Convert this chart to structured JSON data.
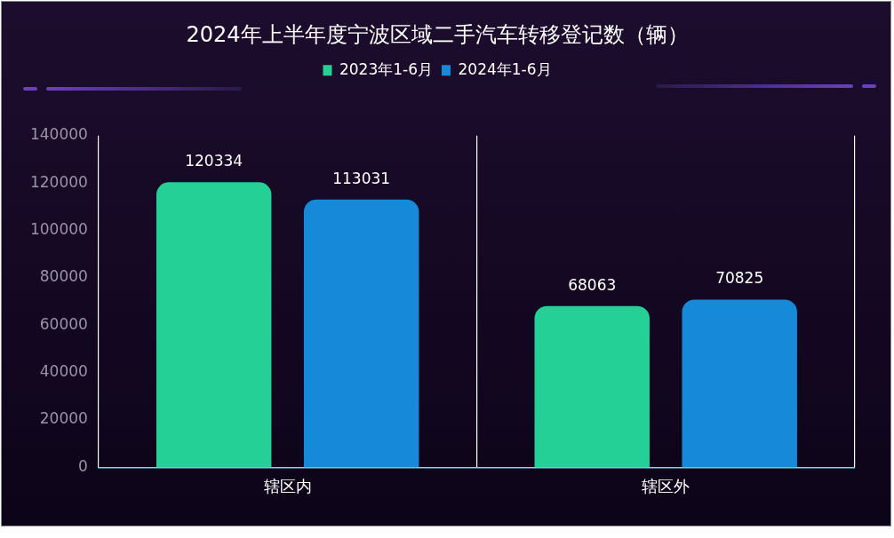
{
  "chart_data": {
    "type": "bar",
    "title": "2024年上半年度宁波区域二手汽车转移登记数（辆）",
    "categories": [
      "辖区内",
      "辖区外"
    ],
    "series": [
      {
        "name": "2023年1-6月",
        "color": "#25d096",
        "values": [
          120334,
          68063
        ]
      },
      {
        "name": "2024年1-6月",
        "color": "#168ad8",
        "values": [
          113031,
          70825
        ]
      }
    ],
    "ylim": [
      0,
      140000
    ],
    "yticks": [
      0,
      20000,
      40000,
      60000,
      80000,
      100000,
      120000,
      140000
    ],
    "grid": "x",
    "legend": "top",
    "data_labels": true
  }
}
